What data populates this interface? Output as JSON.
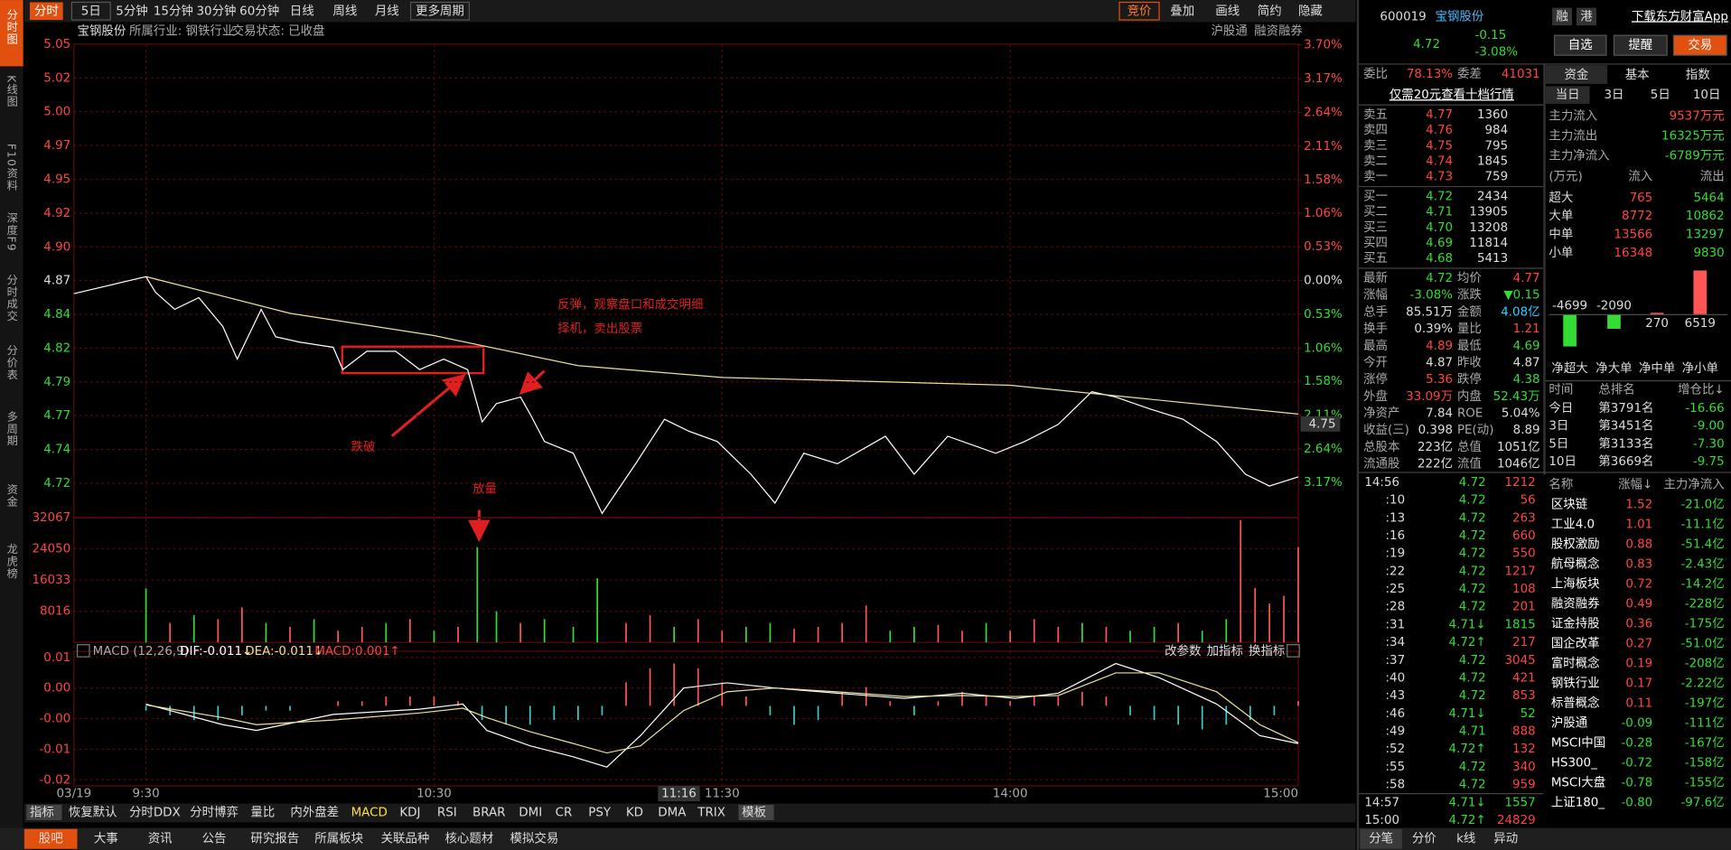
{
  "sidebar": [
    "分时图",
    "K线图",
    "F10资料",
    "深度F9",
    "分时成交",
    "分价表",
    "多周期",
    "资金",
    "龙虎榜"
  ],
  "toolbar": {
    "left": [
      "分时",
      "5日",
      "5分钟",
      "15分钟",
      "30分钟",
      "60分钟",
      "日线",
      "周线",
      "月线",
      "更多周期"
    ],
    "right": [
      "竞价",
      "叠加",
      "画线",
      "简约",
      "隐藏"
    ]
  },
  "info": {
    "left": [
      "宝钢股份",
      "所属行业: 钢铁行业",
      "交易状态: 已收盘"
    ],
    "right": [
      "沪股通",
      "融资融券"
    ]
  },
  "annotations": {
    "rebound": [
      "反弹，观察盘口和成交明细",
      "择机，卖出股票"
    ],
    "break": "跌破",
    "volume": "放量"
  },
  "cursor": {
    "time": "11:16",
    "price": "4.75"
  },
  "macd_header": {
    "name": "MACD (12,26,9)",
    "dif": "DIF:-0.011↓",
    "dea": "DEA:-0.011↓",
    "macd": "MACD:0.001↑",
    "actions": [
      "改参数",
      "加指标",
      "换指标"
    ]
  },
  "indicators": [
    "指标",
    "恢复默认",
    "分时DDX",
    "分时博弈",
    "量比",
    "内外盘差",
    "MACD",
    "KDJ",
    "RSI",
    "BRAR",
    "DMI",
    "CR",
    "PSY",
    "KD",
    "DMA",
    "TRIX",
    "模板"
  ],
  "bottom_tabs": [
    "股吧",
    "大事",
    "资讯",
    "公告",
    "研究报告",
    "所属板块",
    "关联品种",
    "核心题材",
    "模拟交易"
  ],
  "quote": {
    "code": "600019",
    "name": "宝钢股份",
    "badges": [
      "融",
      "港"
    ],
    "app": "下载东方财富App",
    "price": "4.72",
    "change": "-0.15",
    "pct": "-3.08%",
    "buttons": [
      "自选",
      "提醒",
      "交易"
    ]
  },
  "order_ratio": {
    "labels": [
      "委比",
      "委差"
    ],
    "values": [
      "78.13%",
      "41031"
    ]
  },
  "promo": "仅需20元查看十档行情",
  "asks": [
    [
      "卖五",
      "4.77",
      "1360"
    ],
    [
      "卖四",
      "4.76",
      "984"
    ],
    [
      "卖三",
      "4.75",
      "795"
    ],
    [
      "卖二",
      "4.74",
      "1845"
    ],
    [
      "卖一",
      "4.73",
      "759"
    ]
  ],
  "bids": [
    [
      "买一",
      "4.72",
      "2434"
    ],
    [
      "买二",
      "4.71",
      "13905"
    ],
    [
      "买三",
      "4.70",
      "13208"
    ],
    [
      "买四",
      "4.69",
      "11814"
    ],
    [
      "买五",
      "4.68",
      "5413"
    ]
  ],
  "stats": [
    {
      "cells": [
        "最新",
        "4.72",
        "均价",
        "4.77"
      ],
      "colors": [
        "#33dd33",
        "#ff4444"
      ]
    },
    {
      "cells": [
        "涨幅",
        "-3.08%",
        "涨跌",
        "▼0.15"
      ],
      "colors": [
        "#33dd33",
        "#33dd33"
      ]
    },
    {
      "cells": [
        "总手",
        "85.51万",
        "金额",
        "4.08亿"
      ],
      "colors": [
        "#dddddd",
        "#33ccff"
      ]
    },
    {
      "cells": [
        "换手",
        "0.39%",
        "量比",
        "1.21"
      ],
      "colors": [
        "#dddddd",
        "#ff4444"
      ]
    },
    {
      "cells": [
        "最高",
        "4.89",
        "最低",
        "4.69"
      ],
      "colors": [
        "#ff4444",
        "#33dd33"
      ]
    },
    {
      "cells": [
        "今开",
        "4.87",
        "昨收",
        "4.87"
      ],
      "colors": [
        "#dddddd",
        "#dddddd"
      ]
    },
    {
      "cells": [
        "涨停",
        "5.36",
        "跌停",
        "4.38"
      ],
      "colors": [
        "#ff4444",
        "#33dd33"
      ]
    },
    {
      "cells": [
        "外盘",
        "33.09万",
        "内盘",
        "52.43万"
      ],
      "colors": [
        "#ff4444",
        "#33dd33"
      ]
    },
    {
      "cells": [
        "净资产",
        "7.84",
        "ROE",
        "5.04%"
      ],
      "colors": [
        "#dddddd",
        "#dddddd"
      ]
    },
    {
      "cells": [
        "收益(三)",
        "0.398",
        "PE(动)",
        "8.89"
      ],
      "colors": [
        "#dddddd",
        "#dddddd"
      ]
    },
    {
      "cells": [
        "总股本",
        "223亿",
        "总值",
        "1051亿"
      ],
      "colors": [
        "#dddddd",
        "#dddddd"
      ]
    },
    {
      "cells": [
        "流通股",
        "222亿",
        "流值",
        "1046亿"
      ],
      "colors": [
        "#dddddd",
        "#dddddd"
      ]
    }
  ],
  "trades": [
    [
      "14:56",
      "4.72",
      "1212"
    ],
    [
      ":10",
      "4.72",
      "56"
    ],
    [
      ":13",
      "4.72",
      "263"
    ],
    [
      ":16",
      "4.72",
      "660"
    ],
    [
      ":19",
      "4.72",
      "550"
    ],
    [
      ":22",
      "4.72",
      "1217"
    ],
    [
      ":25",
      "4.72",
      "108"
    ],
    [
      ":28",
      "4.72",
      "201"
    ],
    [
      ":31",
      "4.71↓",
      "1815"
    ],
    [
      ":34",
      "4.72↑",
      "217"
    ],
    [
      ":37",
      "4.72",
      "3045"
    ],
    [
      ":40",
      "4.72",
      "421"
    ],
    [
      ":43",
      "4.72",
      "853"
    ],
    [
      ":46",
      "4.71↓",
      "52"
    ],
    [
      ":49",
      "4.71",
      "888"
    ],
    [
      ":52",
      "4.72↑",
      "132"
    ],
    [
      ":55",
      "4.72",
      "340"
    ],
    [
      ":58",
      "4.72",
      "959"
    ],
    [
      "14:57",
      "4.71↓",
      "1557"
    ],
    [
      "15:00",
      "4.72↑",
      "24829"
    ]
  ],
  "funds": {
    "tabs": [
      "资金",
      "基本",
      "指数"
    ],
    "periods": [
      "当日",
      "3日",
      "5日",
      "10日"
    ],
    "summary": [
      [
        "主力流入",
        "9537万元"
      ],
      [
        "主力流出",
        "16325万元"
      ],
      [
        "主力净流入",
        "-6789万元"
      ]
    ],
    "header": [
      "(万元)",
      "流入",
      "流出"
    ],
    "rows": [
      [
        "超大",
        "765",
        "5464"
      ],
      [
        "大单",
        "8772",
        "10862"
      ],
      [
        "中单",
        "13566",
        "13297"
      ],
      [
        "小单",
        "16348",
        "9830"
      ]
    ]
  },
  "rank": {
    "header": [
      "时间",
      "总排名",
      "增仓比↓"
    ],
    "rows": [
      [
        "今日",
        "第3791名",
        "-16.66"
      ],
      [
        "3日",
        "第3451名",
        "-9.00"
      ],
      [
        "5日",
        "第3133名",
        "-7.30"
      ],
      [
        "10日",
        "第3669名",
        "-9.75"
      ]
    ]
  },
  "sectors": {
    "header": [
      "名称",
      "涨幅↓",
      "主力净流入"
    ],
    "rows": [
      [
        "区块链",
        "1.52",
        "-21.0亿"
      ],
      [
        "工业4.0",
        "1.01",
        "-11.1亿"
      ],
      [
        "股权激励",
        "0.88",
        "-51.4亿"
      ],
      [
        "航母概念",
        "0.83",
        "-2.43亿"
      ],
      [
        "上海板块",
        "0.72",
        "-14.2亿"
      ],
      [
        "融资融券",
        "0.49",
        "-228亿"
      ],
      [
        "证金持股",
        "0.36",
        "-175亿"
      ],
      [
        "国企改革",
        "0.27",
        "-51.0亿"
      ],
      [
        "富时概念",
        "0.19",
        "-208亿"
      ],
      [
        "钢铁行业",
        "0.17",
        "-2.22亿"
      ],
      [
        "标普概念",
        "0.11",
        "-197亿"
      ],
      [
        "沪股通",
        "-0.09",
        "-111亿"
      ],
      [
        "MSCI中国",
        "-0.28",
        "-167亿"
      ],
      [
        "HS300_",
        "-0.72",
        "-158亿"
      ],
      [
        "MSCI大盘",
        "-0.78",
        "-155亿"
      ],
      [
        "上证180_",
        "-0.80",
        "-97.6亿"
      ]
    ]
  },
  "right_tabs": [
    "分笔",
    "分价",
    "k线",
    "异动"
  ],
  "chart_data": [
    {
      "type": "line",
      "xlim": [
        -15,
        240
      ],
      "xticks": [
        {
          "value": -15,
          "label": "03/19"
        },
        {
          "value": 0,
          "label": "9:30"
        },
        {
          "value": 60,
          "label": "10:30"
        },
        {
          "value": 120,
          "label": "11:30"
        },
        {
          "value": 180,
          "label": "14:00"
        },
        {
          "value": 240,
          "label": "15:00"
        }
      ],
      "ylim": [
        4.689,
        5.0507
      ],
      "yticks": [
        {
          "value": 5.0507,
          "label": "5.05"
        },
        {
          "value": 5.0249,
          "label": "5.02"
        },
        {
          "value": 4.9991,
          "label": "5.00"
        },
        {
          "value": 4.9733,
          "label": "4.97"
        },
        {
          "value": 4.9474,
          "label": "4.95"
        },
        {
          "value": 4.9216,
          "label": "4.92"
        },
        {
          "value": 4.8958,
          "label": "4.90"
        },
        4.87,
        {
          "value": 4.8442,
          "label": "4.84"
        },
        {
          "value": 4.8184,
          "label": "4.82"
        },
        {
          "value": 4.7925,
          "label": "4.79"
        },
        {
          "value": 4.7667,
          "label": "4.77"
        },
        {
          "value": 4.7409,
          "label": "4.74"
        },
        {
          "value": 4.7151,
          "label": "4.72"
        }
      ],
      "y2lim": [
        -3.717,
        3.71
      ],
      "y2ticks": [
        {
          "value": 3.7,
          "label": "3.70%"
        },
        {
          "value": 3.17,
          "label": "3.17%"
        },
        {
          "value": 2.64,
          "label": "2.64%"
        },
        {
          "value": 2.11,
          "label": "2.11%"
        },
        {
          "value": 1.58,
          "label": "1.58%"
        },
        {
          "value": 1.06,
          "label": "1.06%"
        },
        {
          "value": 0.53,
          "label": "0.53%"
        },
        {
          "value": 0,
          "label": "0.00%"
        },
        {
          "value": -0.53,
          "label": "0.53%"
        },
        {
          "value": -1.06,
          "label": "1.06%"
        },
        {
          "value": -1.58,
          "label": "1.58%"
        },
        {
          "value": -2.11,
          "label": "2.11%"
        },
        {
          "value": -2.64,
          "label": "2.64%"
        },
        {
          "value": -3.17,
          "label": "3.17%"
        }
      ],
      "grid": true,
      "series": [
        {
          "color": "#ffffff",
          "x": [
            -15,
            0,
            2,
            6,
            11,
            16,
            19,
            24,
            27,
            32,
            39,
            41,
            46,
            52,
            57,
            62,
            67,
            70,
            73,
            78,
            80,
            83,
            89,
            95,
            102,
            108,
            113,
            119,
            126,
            131,
            137,
            144,
            154,
            160,
            167,
            177,
            183,
            190,
            197,
            202,
            209,
            216,
            223,
            229,
            234,
            240
          ],
          "values": [
            4.86,
            4.873,
            4.861,
            4.848,
            4.857,
            4.835,
            4.81,
            4.848,
            4.827,
            4.823,
            4.819,
            4.802,
            4.816,
            4.816,
            4.802,
            4.81,
            4.802,
            4.762,
            4.776,
            4.781,
            4.768,
            4.747,
            4.738,
            4.692,
            4.73,
            4.764,
            4.755,
            4.747,
            4.722,
            4.7,
            4.738,
            4.73,
            4.751,
            4.722,
            4.751,
            4.738,
            4.747,
            4.76,
            4.785,
            4.781,
            4.772,
            4.764,
            4.747,
            4.722,
            4.713,
            4.72
          ]
        },
        {
          "color": "#e8e29a",
          "x": [
            0,
            30,
            60,
            90,
            120,
            180,
            240
          ],
          "values": [
            4.873,
            4.845,
            4.828,
            4.805,
            4.796,
            4.79,
            4.768
          ]
        }
      ]
    },
    {
      "type": "bar",
      "xlim": [
        -15,
        240
      ],
      "ylim": [
        0,
        32067
      ],
      "yticks": [
        8016,
        16033,
        24050,
        32067
      ],
      "grid": true,
      "x": [
        0,
        5,
        10,
        15,
        20,
        25,
        30,
        35,
        40,
        45,
        50,
        55,
        60,
        65,
        69,
        73,
        78,
        83,
        89,
        94,
        100,
        105,
        110,
        115,
        120,
        125,
        130,
        135,
        140,
        145,
        150,
        155,
        160,
        165,
        170,
        175,
        180,
        185,
        190,
        195,
        200,
        205,
        210,
        215,
        220,
        225,
        228,
        231,
        234,
        237,
        240
      ],
      "values": [
        13900,
        5000,
        7000,
        6000,
        9000,
        5000,
        4000,
        6000,
        3000,
        4000,
        5000,
        6000,
        3000,
        4000,
        24500,
        8000,
        5000,
        6000,
        4000,
        16500,
        5000,
        7000,
        4000,
        6000,
        3000,
        4000,
        5000,
        3500,
        4000,
        5000,
        9500,
        3000,
        4000,
        4500,
        3000,
        5000,
        3000,
        6000,
        4000,
        5000,
        4000,
        3000,
        4000,
        5000,
        3000,
        6000,
        31500,
        14000,
        10000,
        12000,
        24500
      ],
      "colors": [
        "#33dd33",
        "#ff5555",
        "#33dd33",
        "#ff5555",
        "#ff5555",
        "#33dd33",
        "#ff5555",
        "#33dd33",
        "#ff5555",
        "#ff5555",
        "#33dd33",
        "#ff5555",
        "#33dd33",
        "#ff5555",
        "#33dd33",
        "#33dd33",
        "#ff5555",
        "#33dd33",
        "#33dd33",
        "#33dd33",
        "#ff5555",
        "#ff5555",
        "#33dd33",
        "#ff5555",
        "#ff5555",
        "#33dd33",
        "#33dd33",
        "#ff5555",
        "#ff5555",
        "#ff5555",
        "#ff5555",
        "#33dd33",
        "#33dd33",
        "#ff5555",
        "#ff5555",
        "#33dd33",
        "#ff5555",
        "#ff5555",
        "#ff5555",
        "#33dd33",
        "#ff5555",
        "#33dd33",
        "#33dd33",
        "#ff5555",
        "#33dd33",
        "#33dd33",
        "#ff5555",
        "#ff5555",
        "#ff5555",
        "#ff5555",
        "#ff5555"
      ]
    },
    {
      "type": "macd",
      "xlim": [
        -15,
        240
      ],
      "ylim": [
        -0.017,
        0.0116
      ],
      "yticks": [
        {
          "value": 0.0103,
          "label": "0.01"
        },
        {
          "value": 0.0038,
          "label": "0.00"
        },
        {
          "value": -0.0027,
          "label": "-0.00"
        },
        {
          "value": -0.0092,
          "label": "-0.01"
        },
        {
          "value": -0.0157,
          "label": "-0.02"
        }
      ],
      "grid": true,
      "bar_colors": [
        "#ff5555",
        "#33cccc"
      ],
      "histogram": {
        "x": [
          0,
          5,
          10,
          15,
          20,
          25,
          30,
          35,
          40,
          45,
          50,
          55,
          60,
          65,
          70,
          75,
          80,
          85,
          90,
          95,
          100,
          105,
          110,
          115,
          120,
          125,
          130,
          135,
          140,
          145,
          150,
          155,
          160,
          165,
          170,
          175,
          180,
          185,
          190,
          195,
          200,
          205,
          210,
          215,
          220,
          225,
          230,
          235,
          240
        ],
        "values": [
          -0.001,
          -0.002,
          -0.003,
          -0.003,
          -0.002,
          -0.001,
          -0.001,
          0,
          0.001,
          0.001,
          0.002,
          0.002,
          0.002,
          0.001,
          -0.003,
          -0.004,
          -0.004,
          -0.003,
          -0.003,
          -0.002,
          0.005,
          0.008,
          0.009,
          0.008,
          0.005,
          0.002,
          -0.002,
          -0.004,
          -0.003,
          0.003,
          0.004,
          0.001,
          -0.002,
          0.001,
          0.003,
          0.002,
          0.001,
          0.002,
          0.002,
          0.003,
          0.002,
          -0.002,
          -0.003,
          -0.004,
          -0.005,
          -0.004,
          -0.003,
          -0.002,
          0.001
        ]
      },
      "series": [
        {
          "color": "#ffffff",
          "x": [
            0,
            16,
            23,
            39,
            57,
            66,
            71,
            80,
            89,
            96,
            103,
            112,
            121,
            131,
            144,
            158,
            170,
            181,
            190,
            202,
            211,
            223,
            232,
            240
          ],
          "values": [
            0.0004,
            -0.004,
            -0.0052,
            -0.0018,
            -0.0007,
            0.0004,
            -0.0052,
            -0.0085,
            -0.0108,
            -0.013,
            -0.0063,
            0.0038,
            0.0049,
            0.0038,
            0.0027,
            0.0016,
            0.0027,
            0.0016,
            0.0027,
            0.009,
            0.006,
            0.0004,
            -0.0063,
            -0.008
          ]
        },
        {
          "color": "#e8e29a",
          "x": [
            0,
            16,
            23,
            39,
            57,
            66,
            71,
            80,
            89,
            96,
            103,
            112,
            121,
            131,
            144,
            158,
            170,
            181,
            190,
            202,
            211,
            223,
            232,
            240
          ],
          "values": [
            0.0002,
            -0.0025,
            -0.004,
            -0.003,
            -0.0015,
            -0.0005,
            -0.0025,
            -0.0055,
            -0.008,
            -0.01,
            -0.0085,
            -0.001,
            0.003,
            0.0038,
            0.003,
            0.002,
            0.0022,
            0.002,
            0.0022,
            0.007,
            0.007,
            0.003,
            -0.004,
            -0.0078
          ]
        }
      ]
    },
    {
      "type": "bar",
      "categories": [
        "净超大",
        "净大单",
        "净中单",
        "净小单"
      ],
      "values": [
        -4699,
        -2090,
        270,
        6519
      ],
      "colors": [
        "#33dd33",
        "#33dd33",
        "#ff5555",
        "#ff5555"
      ]
    }
  ]
}
